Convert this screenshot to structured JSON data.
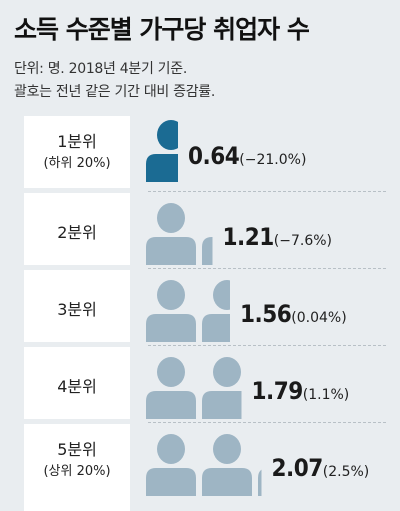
{
  "title": "소득 수준별 가구당 취업자 수",
  "notes": [
    "단위: 명. 2018년 4분기 기준.",
    "괄호는 전년 같은 기간 대비 증감률."
  ],
  "colors": {
    "highlight": "#1b6b93",
    "person": "#9eb5c4",
    "background": "#e9edf0",
    "label_bg": "#ffffff"
  },
  "chart_data": {
    "type": "bar",
    "title": "소득 수준별 가구당 취업자 수",
    "unit": "명",
    "categories": [
      "1분위",
      "2분위",
      "3분위",
      "4분위",
      "5분위"
    ],
    "category_sublabels": [
      "(하위 20%)",
      "",
      "",
      "",
      "(상위 20%)"
    ],
    "values": [
      0.64,
      1.21,
      1.56,
      1.79,
      2.07
    ],
    "value_labels": [
      "0.64",
      "1.21",
      "1.56",
      "1.79",
      "2.07"
    ],
    "changes": [
      "(−21.0%)",
      "(−7.6%)",
      "(0.04%)",
      "(1.1%)",
      "(2.5%)"
    ],
    "highlight_index": 0
  }
}
